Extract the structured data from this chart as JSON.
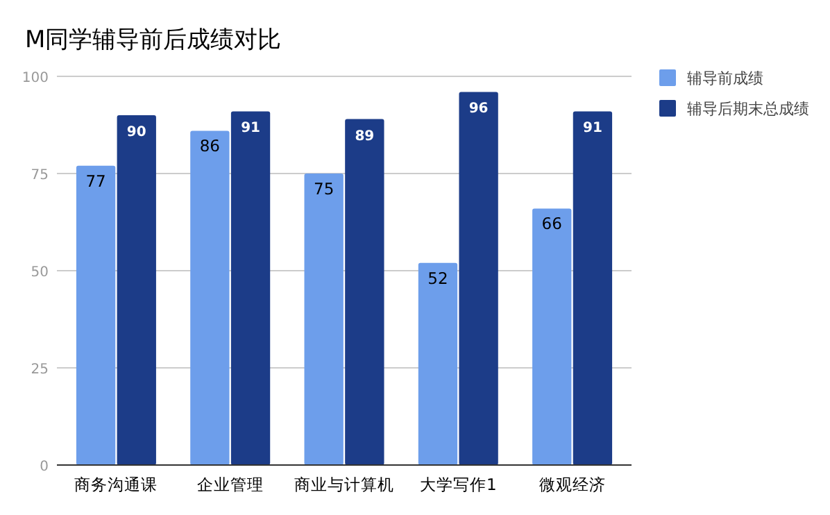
{
  "chart_data": {
    "type": "bar",
    "title": "M同学辅导前后成绩对比",
    "categories": [
      "商务沟通课",
      "企业管理",
      "商业与计算机",
      "大学写作1",
      "微观经济"
    ],
    "series": [
      {
        "name": "辅导前成绩",
        "color": "#6d9eeb",
        "values": [
          77,
          86,
          75,
          52,
          66
        ]
      },
      {
        "name": "辅导后期末总成绩",
        "color": "#1c3c88",
        "values": [
          90,
          91,
          89,
          96,
          91
        ]
      }
    ],
    "ylim": [
      0,
      100
    ],
    "yticks": [
      0,
      25,
      50,
      75,
      100
    ],
    "grid": "y",
    "legend": "right",
    "data_labels": true
  }
}
